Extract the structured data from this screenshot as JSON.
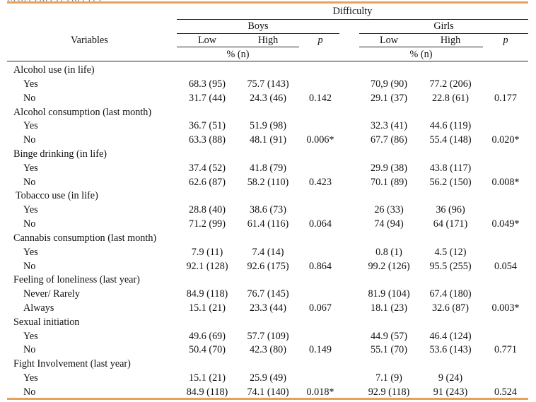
{
  "header": {
    "clipped_text": "(.) (,) ( ) (,) ( ) ( ) (,) ( ) ( )",
    "group": "Difficulty",
    "boys": "Boys",
    "girls": "Girls",
    "variables": "Variables",
    "low": "Low",
    "high": "High",
    "p": "p",
    "pct_n": "% (n)"
  },
  "rows": [
    {
      "type": "section",
      "label": "Alcohol use (in life)"
    },
    {
      "type": "data",
      "label": "Yes",
      "boys_low": "68.3 (95)",
      "boys_high": "75.7 (143)",
      "boys_p": "",
      "girls_low": "70,9 (90)",
      "girls_high": "77.2 (206)",
      "girls_p": ""
    },
    {
      "type": "data",
      "label": "No",
      "boys_low": "31.7 (44)",
      "boys_high": "24.3 (46)",
      "boys_p": "0.142",
      "girls_low": "29.1 (37)",
      "girls_high": "22.8 (61)",
      "girls_p": "0.177"
    },
    {
      "type": "section",
      "label": "Alcohol consumption (last month)"
    },
    {
      "type": "data",
      "label": "Yes",
      "boys_low": "36.7 (51)",
      "boys_high": "51.9 (98)",
      "boys_p": "",
      "girls_low": "32.3 (41)",
      "girls_high": "44.6 (119)",
      "girls_p": ""
    },
    {
      "type": "data",
      "label": "No",
      "boys_low": "63.3 (88)",
      "boys_high": "48.1 (91)",
      "boys_p": "0.006*",
      "girls_low": "67.7 (86)",
      "girls_high": "55.4 (148)",
      "girls_p": "0.020*"
    },
    {
      "type": "section",
      "label": "Binge drinking (in life)"
    },
    {
      "type": "data",
      "label": "Yes",
      "boys_low": "37.4 (52)",
      "boys_high": "41.8 (79)",
      "boys_p": "",
      "girls_low": "29.9 (38)",
      "girls_high": "43.8 (117)",
      "girls_p": ""
    },
    {
      "type": "data",
      "label": "No",
      "boys_low": "62.6 (87)",
      "boys_high": "58.2 (110)",
      "boys_p": "0.423",
      "girls_low": "70.1 (89)",
      "girls_high": "56.2 (150)",
      "girls_p": "0.008*"
    },
    {
      "type": "section",
      "label": "Tobacco use (in life)"
    },
    {
      "type": "data",
      "label": "Yes",
      "boys_low": "28.8 (40)",
      "boys_high": "38.6 (73)",
      "boys_p": "",
      "girls_low": "26 (33)",
      "girls_high": "36 (96)",
      "girls_p": ""
    },
    {
      "type": "data",
      "label": "No",
      "boys_low": "71.2 (99)",
      "boys_high": "61.4 (116)",
      "boys_p": "0.064",
      "girls_low": "74 (94)",
      "girls_high": "64 (171)",
      "girls_p": "0.049*"
    },
    {
      "type": "section",
      "label": "Cannabis consumption (last month)"
    },
    {
      "type": "data",
      "label": "Yes",
      "boys_low": "7.9 (11)",
      "boys_high": "7.4 (14)",
      "boys_p": "",
      "girls_low": "0.8 (1)",
      "girls_high": "4.5 (12)",
      "girls_p": ""
    },
    {
      "type": "data",
      "label": "No",
      "boys_low": "92.1 (128)",
      "boys_high": "92.6 (175)",
      "boys_p": "0.864",
      "girls_low": "99.2 (126)",
      "girls_high": "95.5 (255)",
      "girls_p": "0.054"
    },
    {
      "type": "section",
      "label": "Feeling of loneliness (last year)"
    },
    {
      "type": "data",
      "label": "Never/  Rarely",
      "boys_low": "84.9 (118)",
      "boys_high": "76.7 (145)",
      "boys_p": "",
      "girls_low": "81.9 (104)",
      "girls_high": "67.4 (180)",
      "girls_p": ""
    },
    {
      "type": "data",
      "label": "Always",
      "boys_low": "15.1 (21)",
      "boys_high": "23.3 (44)",
      "boys_p": "0.067",
      "girls_low": "18.1 (23)",
      "girls_high": "32.6 (87)",
      "girls_p": "0.003*"
    },
    {
      "type": "section",
      "label": "Sexual initiation"
    },
    {
      "type": "data",
      "label": "Yes",
      "boys_low": "49.6 (69)",
      "boys_high": "57.7 (109)",
      "boys_p": "",
      "girls_low": "44.9 (57)",
      "girls_high": "46.4 (124)",
      "girls_p": ""
    },
    {
      "type": "data",
      "label": "No",
      "boys_low": "50.4 (70)",
      "boys_high": "42.3 (80)",
      "boys_p": "0.149",
      "girls_low": "55.1 (70)",
      "girls_high": "53.6 (143)",
      "girls_p": "0.771"
    },
    {
      "type": "section",
      "label": "Fight Involvement (last year)"
    },
    {
      "type": "data",
      "label": "Yes",
      "boys_low": "15.1 (21)",
      "boys_high": "25.9 (49)",
      "boys_p": "",
      "girls_low": "7.1 (9)",
      "girls_high": "9 (24)",
      "girls_p": ""
    },
    {
      "type": "data",
      "label": "No",
      "boys_low": "84.9 (118)",
      "boys_high": "74.1 (140)",
      "boys_p": "0.018*",
      "girls_low": "92.9 (118)",
      "girls_high": "91 (243)",
      "girls_p": "0.524"
    }
  ]
}
